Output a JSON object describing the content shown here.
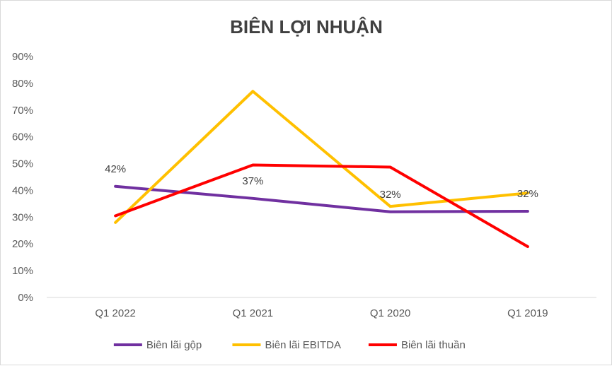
{
  "chart_data": {
    "type": "line",
    "title": "BIÊN LỢI NHUẬN",
    "categories": [
      "Q1 2022",
      "Q1 2021",
      "Q1 2020",
      "Q1 2019"
    ],
    "ylim": [
      0,
      0.9
    ],
    "yticks": [
      "0%",
      "10%",
      "20%",
      "30%",
      "40%",
      "50%",
      "60%",
      "70%",
      "80%",
      "90%"
    ],
    "grid": false,
    "legend_position": "bottom",
    "series": [
      {
        "name": "Biên lãi gộp",
        "color": "#7030A0",
        "values": [
          0.415,
          0.37,
          0.32,
          0.322
        ],
        "data_labels": [
          "42%",
          "37%",
          "32%",
          "32%"
        ]
      },
      {
        "name": "Biên lãi EBITDA",
        "color": "#FFC000",
        "values": [
          0.28,
          0.77,
          0.34,
          0.39
        ]
      },
      {
        "name": "Biên lãi thuần",
        "color": "#FF0000",
        "values": [
          0.305,
          0.495,
          0.487,
          0.19
        ]
      }
    ]
  }
}
